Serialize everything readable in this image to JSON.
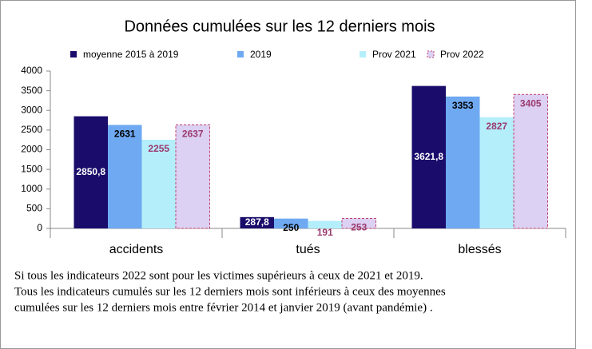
{
  "chart_data": {
    "type": "bar",
    "title": "Données cumulées sur les 12 derniers mois",
    "categories": [
      "accidents",
      "tués",
      "blessés"
    ],
    "series": [
      {
        "name": "moyenne 2015 à 2019",
        "color": "#1a0c6b",
        "values": [
          2850.8,
          287.8,
          3621.8
        ],
        "value_labels": [
          "2850,8",
          "287,8",
          "3621,8"
        ]
      },
      {
        "name": "2019",
        "color": "#6ea9f2",
        "values": [
          2631,
          250,
          3353
        ],
        "value_labels": [
          "2631",
          "250",
          "3353"
        ]
      },
      {
        "name": "Prov 2021",
        "color": "#b5eefb",
        "values": [
          2255,
          191,
          2827
        ],
        "value_labels": [
          "2255",
          "191",
          "2827"
        ]
      },
      {
        "name": "Prov 2022",
        "color": "#dcd0f3",
        "values": [
          2637,
          253,
          3405
        ],
        "value_labels": [
          "2637",
          "253",
          "3405"
        ]
      }
    ],
    "ylim": [
      0,
      4000
    ],
    "yticks": [
      0,
      500,
      1000,
      1500,
      2000,
      2500,
      3000,
      3500,
      4000
    ],
    "grid": false,
    "legend": "top"
  },
  "caption": {
    "lines": [
      "Si tous les indicateurs 2022 sont pour les victimes supérieurs à ceux de 2021 et 2019.",
      "Tous les indicateurs cumulés sur les 12 derniers mois sont inférieurs à ceux des moyennes",
      "cumulées sur les 12 derniers mois entre février 2014 et janvier 2019 (avant pandémie) ."
    ]
  }
}
